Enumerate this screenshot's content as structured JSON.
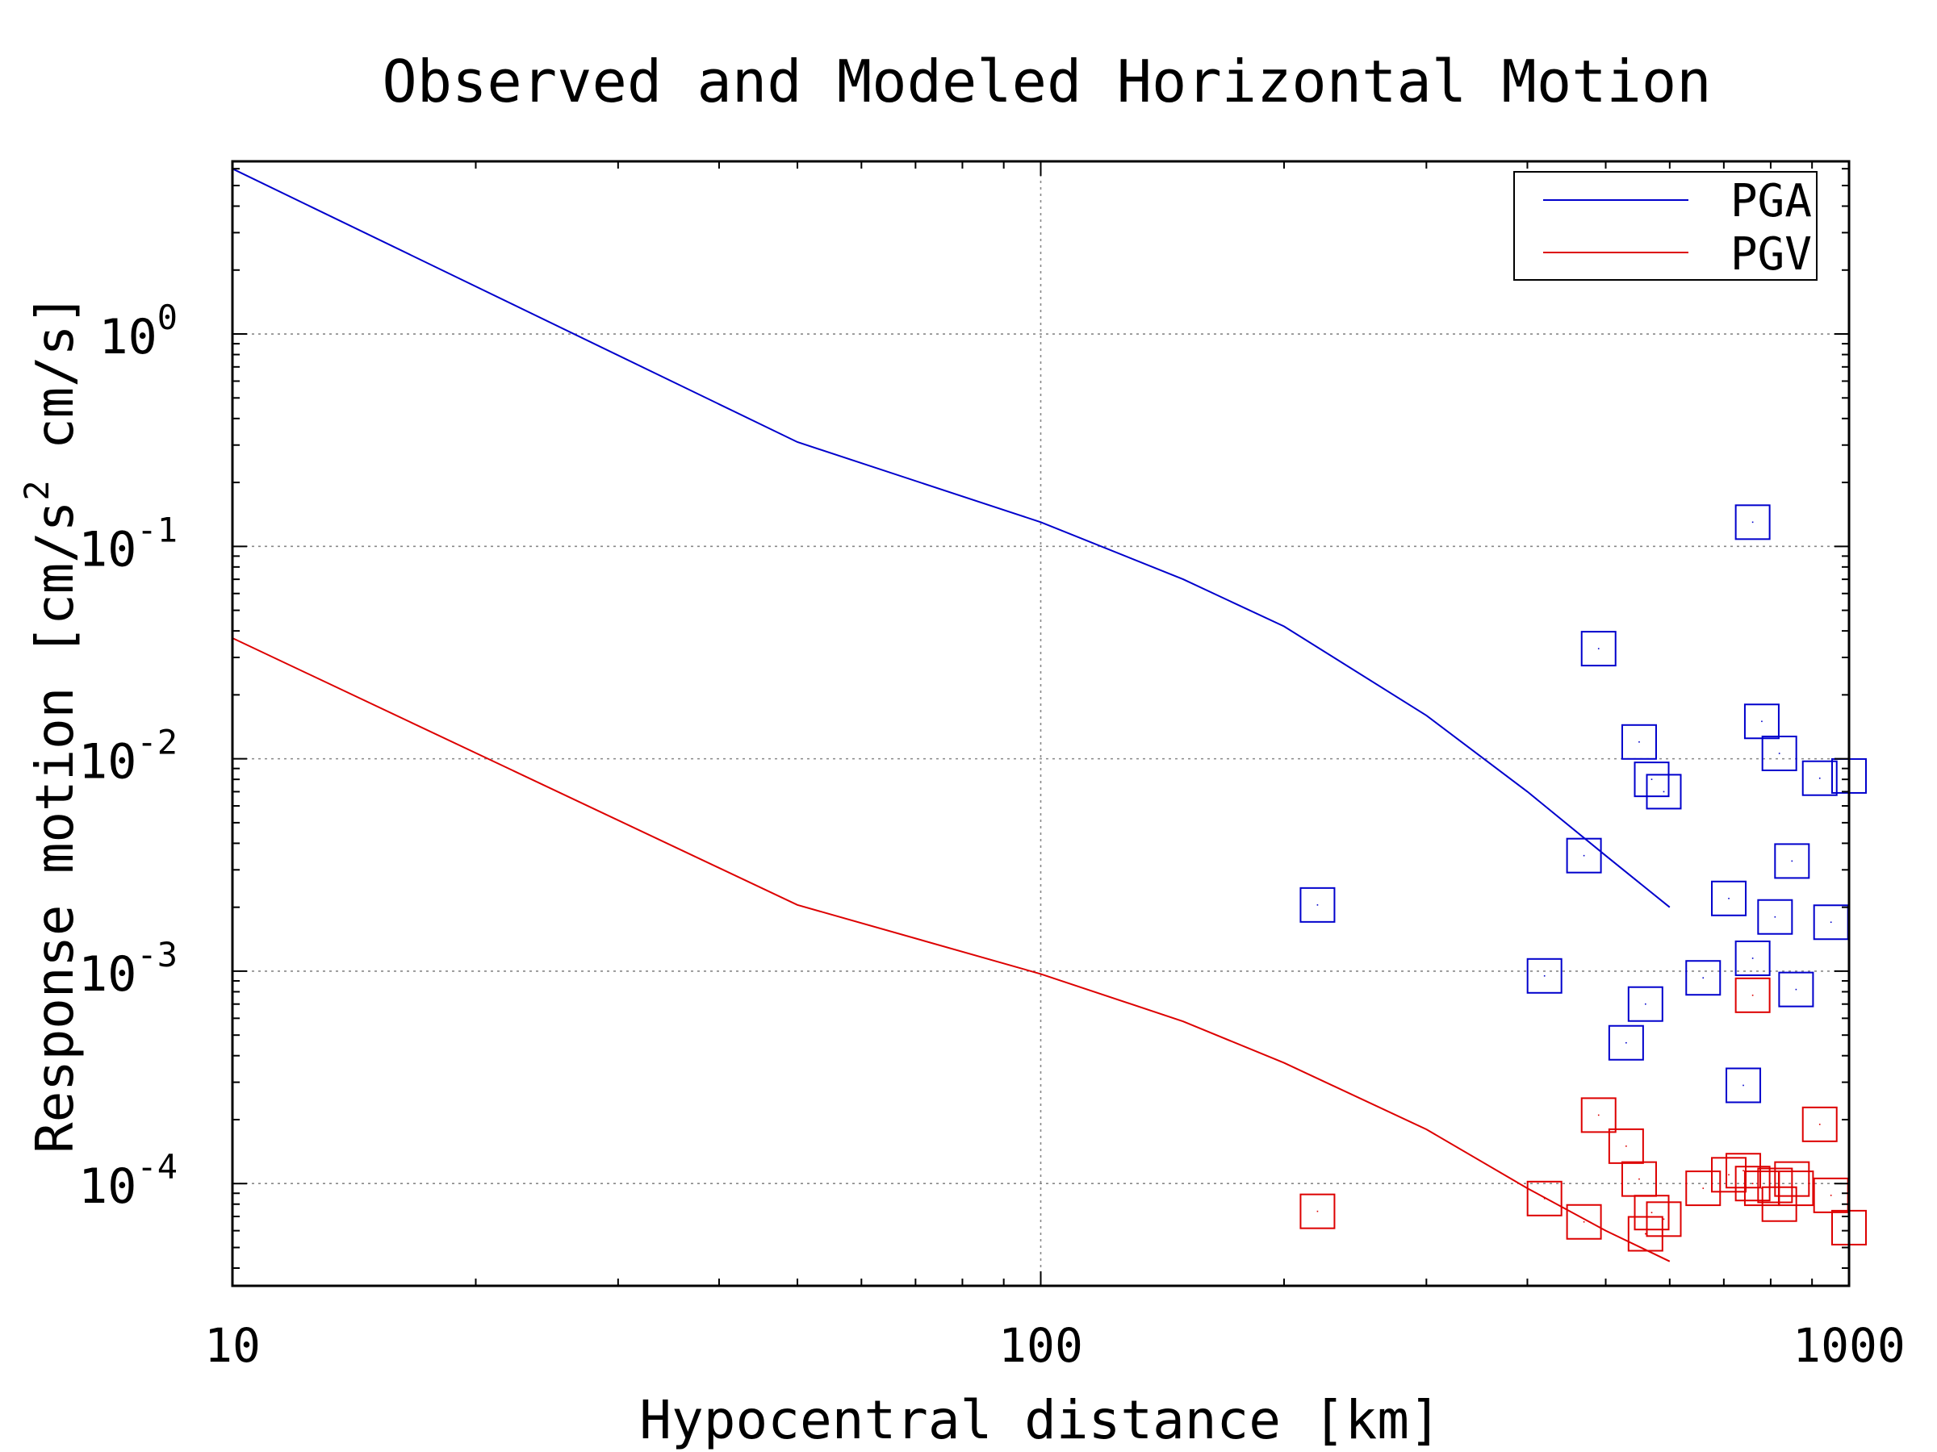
{
  "chart_data": {
    "type": "scatter",
    "title": "Observed and Modeled Horizontal Motion",
    "xlabel": "Hypocentral distance [km]",
    "ylabel_parts": [
      "Response motion  [cm/s",
      "2",
      "  cm/s]"
    ],
    "x_scale": "log",
    "y_scale": "log",
    "xlim": [
      10,
      1000
    ],
    "ylim": [
      3.3e-05,
      6.5
    ],
    "x_ticks": [
      {
        "value": 10,
        "label": "10"
      },
      {
        "value": 100,
        "label": "100"
      },
      {
        "value": 1000,
        "label": "1000"
      }
    ],
    "y_ticks": [
      {
        "value": 1,
        "base": "10",
        "exp": "0"
      },
      {
        "value": 0.1,
        "base": "10",
        "exp": "-1"
      },
      {
        "value": 0.01,
        "base": "10",
        "exp": "-2"
      },
      {
        "value": 0.001,
        "base": "10",
        "exp": "-3"
      },
      {
        "value": 0.0001,
        "base": "10",
        "exp": "-4"
      }
    ],
    "grid": true,
    "legend_position": "top-right",
    "series": [
      {
        "name": "PGA",
        "color": "#0000cc",
        "model_line": [
          [
            10,
            6.0
          ],
          [
            50,
            0.31
          ],
          [
            100,
            0.13
          ],
          [
            150,
            0.07
          ],
          [
            200,
            0.042
          ],
          [
            300,
            0.016
          ],
          [
            400,
            0.007
          ],
          [
            500,
            0.0035
          ],
          [
            600,
            0.002
          ]
        ],
        "observed": [
          [
            220,
            0.00205
          ],
          [
            420,
            0.00095
          ],
          [
            470,
            0.0035
          ],
          [
            490,
            0.033
          ],
          [
            530,
            0.00046
          ],
          [
            550,
            0.012
          ],
          [
            560,
            0.0007
          ],
          [
            570,
            0.008
          ],
          [
            590,
            0.007
          ],
          [
            660,
            0.00093
          ],
          [
            710,
            0.0022
          ],
          [
            740,
            0.00029
          ],
          [
            760,
            0.13
          ],
          [
            760,
            0.00115
          ],
          [
            780,
            0.015
          ],
          [
            810,
            0.0018
          ],
          [
            820,
            0.0106
          ],
          [
            850,
            0.0033
          ],
          [
            860,
            0.00082
          ],
          [
            920,
            0.0081
          ],
          [
            950,
            0.0017
          ],
          [
            1000,
            0.0083
          ]
        ]
      },
      {
        "name": "PGV",
        "color": "#dd0000",
        "model_line": [
          [
            10,
            0.037
          ],
          [
            50,
            0.00205
          ],
          [
            100,
            0.00097
          ],
          [
            150,
            0.00058
          ],
          [
            200,
            0.00037
          ],
          [
            300,
            0.00018
          ],
          [
            400,
            9.5e-05
          ],
          [
            500,
            6e-05
          ],
          [
            600,
            4.3e-05
          ]
        ],
        "observed": [
          [
            220,
            7.4e-05
          ],
          [
            420,
            8.5e-05
          ],
          [
            470,
            6.6e-05
          ],
          [
            490,
            0.00021
          ],
          [
            530,
            0.00015
          ],
          [
            550,
            0.000105
          ],
          [
            560,
            5.8e-05
          ],
          [
            570,
            7.3e-05
          ],
          [
            590,
            6.8e-05
          ],
          [
            660,
            9.5e-05
          ],
          [
            710,
            0.00011
          ],
          [
            740,
            0.000115
          ],
          [
            760,
            0.00077
          ],
          [
            760,
            0.0001
          ],
          [
            780,
            9.5e-05
          ],
          [
            810,
            9.8e-05
          ],
          [
            820,
            8e-05
          ],
          [
            850,
            0.000105
          ],
          [
            860,
            9.5e-05
          ],
          [
            920,
            0.00019
          ],
          [
            950,
            8.8e-05
          ],
          [
            1000,
            6.2e-05
          ]
        ]
      }
    ]
  }
}
